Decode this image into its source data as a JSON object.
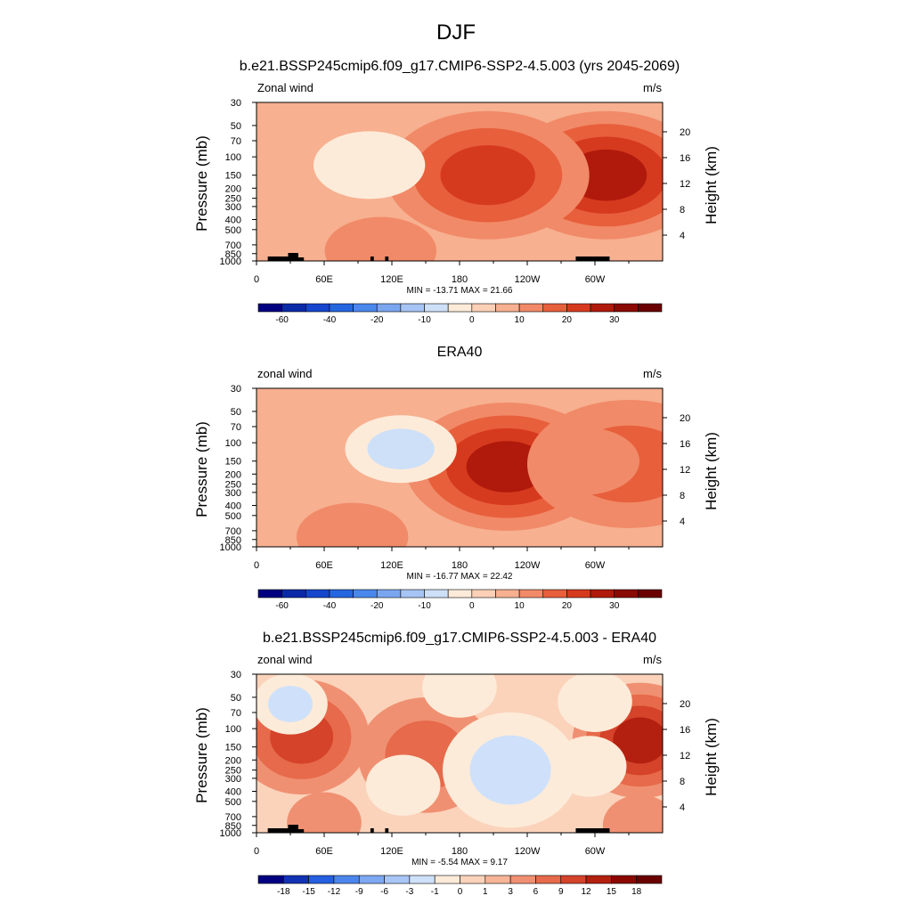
{
  "main_title": "DJF",
  "colors": {
    "ramp1": [
      "#000080",
      "#0a2aa8",
      "#1546cc",
      "#2565e0",
      "#4a88ec",
      "#7aa6f0",
      "#a6c4f4",
      "#cde0f8",
      "#fdebd9",
      "#fbd0b6",
      "#f7b090",
      "#f18a68",
      "#e85f3c",
      "#d63a1e",
      "#b01a0c",
      "#8a0a04",
      "#6a0000"
    ],
    "ramp3": [
      "#000080",
      "#1232b4",
      "#2560e0",
      "#4c86ec",
      "#7ea8f2",
      "#a9c6f6",
      "#cfe1fa",
      "#fdebd9",
      "#fbd3bb",
      "#f7b497",
      "#f09072",
      "#e66a4b",
      "#d4432a",
      "#b4200f",
      "#8a0800",
      "#6a0000"
    ]
  },
  "panels": [
    {
      "title": "b.e21.BSSP245cmip6.f09_g17.CMIP6-SSP2-4.5.003 (yrs 2045-2069)",
      "left_label": "Zonal wind",
      "right_label": "m/s",
      "minmax": "MIN = -13.71  MAX =  21.66",
      "colorbar_labels": [
        "-60",
        "-40",
        "-20",
        "-10",
        "0",
        "10",
        "20",
        "30"
      ],
      "topography": true
    },
    {
      "title": "ERA40",
      "left_label": "zonal wind",
      "right_label": "m/s",
      "minmax": "MIN = -16.77  MAX =  22.42",
      "colorbar_labels": [
        "-60",
        "-40",
        "-20",
        "-10",
        "0",
        "10",
        "20",
        "30"
      ],
      "topography": false
    },
    {
      "title": "b.e21.BSSP245cmip6.f09_g17.CMIP6-SSP2-4.5.003 - ERA40",
      "left_label": "zonal wind",
      "right_label": "m/s",
      "minmax": "MIN =  -5.54  MAX =  9.17",
      "colorbar_labels": [
        "-18",
        "-15",
        "-12",
        "-9",
        "-6",
        "-3",
        "-1",
        "0",
        "1",
        "3",
        "6",
        "9",
        "12",
        "15",
        "18"
      ],
      "topography": true
    }
  ],
  "chart_data": [
    {
      "type": "heatmap",
      "title": "b.e21.BSSP245cmip6.f09_g17.CMIP6-SSP2-4.5.003 (yrs 2045-2069)",
      "x_tick_labels": [
        "0",
        "60E",
        "120E",
        "180",
        "120W",
        "60W"
      ],
      "xlim": [
        0,
        360
      ],
      "ylabel": "Pressure (mb)",
      "y_tick_labels": [
        "30",
        "50",
        "70",
        "100",
        "150",
        "200",
        "250",
        "300",
        "400",
        "500",
        "700",
        "850",
        "1000"
      ],
      "ylim": [
        1000,
        30
      ],
      "yscale": "log",
      "ylabel_right": "Height (km)",
      "y_right_tick_labels": [
        "4",
        "8",
        "12",
        "16",
        "20"
      ],
      "contour_levels": [
        -70,
        -60,
        -50,
        -40,
        -30,
        -20,
        -15,
        -10,
        -5,
        0,
        5,
        10,
        15,
        20,
        25,
        30,
        35,
        40
      ],
      "field_centers": [
        {
          "lon": 310,
          "p": 150,
          "value": 21.66,
          "label": "max"
        },
        {
          "lon": 205,
          "p": 150,
          "value": 18.5
        },
        {
          "lon": 100,
          "p": 120,
          "value": -8
        },
        {
          "lon": 20,
          "p": 60,
          "value": -3
        },
        {
          "lon": 265,
          "p": 60,
          "value": -3
        },
        {
          "lon": 250,
          "p": 150,
          "value": 3
        },
        {
          "lon": 110,
          "p": 800,
          "value": 6
        },
        {
          "lon": 205,
          "p": 750,
          "value": -4
        }
      ],
      "min": -13.71,
      "max": 21.66
    },
    {
      "type": "heatmap",
      "title": "ERA40",
      "x_tick_labels": [
        "0",
        "60E",
        "120E",
        "180",
        "120W",
        "60W"
      ],
      "xlim": [
        0,
        360
      ],
      "ylabel": "Pressure (mb)",
      "y_tick_labels": [
        "30",
        "50",
        "70",
        "100",
        "150",
        "200",
        "250",
        "300",
        "400",
        "500",
        "700",
        "850",
        "1000"
      ],
      "ylim": [
        1000,
        30
      ],
      "yscale": "log",
      "ylabel_right": "Height (km)",
      "y_right_tick_labels": [
        "4",
        "8",
        "12",
        "16",
        "20"
      ],
      "contour_levels": [
        -70,
        -60,
        -50,
        -40,
        -30,
        -20,
        -15,
        -10,
        -5,
        0,
        5,
        10,
        15,
        20,
        25,
        30,
        35,
        40
      ],
      "field_centers": [
        {
          "lon": 222,
          "p": 170,
          "value": 22.42,
          "label": "max"
        },
        {
          "lon": 330,
          "p": 160,
          "value": 14
        },
        {
          "lon": 128,
          "p": 115,
          "value": -12
        },
        {
          "lon": 25,
          "p": 250,
          "value": -4
        },
        {
          "lon": 55,
          "p": 33,
          "value": -4
        },
        {
          "lon": 220,
          "p": 650,
          "value": -4
        },
        {
          "lon": 85,
          "p": 800,
          "value": 5
        },
        {
          "lon": 290,
          "p": 150,
          "value": 5
        }
      ],
      "min": -16.77,
      "max": 22.42
    },
    {
      "type": "heatmap",
      "title": "b.e21.BSSP245cmip6.f09_g17.CMIP6-SSP2-4.5.003 - ERA40",
      "x_tick_labels": [
        "0",
        "60E",
        "120E",
        "180",
        "120W",
        "60W"
      ],
      "xlim": [
        0,
        360
      ],
      "ylabel": "Pressure (mb)",
      "y_tick_labels": [
        "30",
        "50",
        "70",
        "100",
        "150",
        "200",
        "250",
        "300",
        "400",
        "500",
        "700",
        "850",
        "1000"
      ],
      "ylim": [
        1000,
        30
      ],
      "yscale": "log",
      "ylabel_right": "Height (km)",
      "y_right_tick_labels": [
        "4",
        "8",
        "12",
        "16",
        "20"
      ],
      "contour_levels": [
        -21,
        -18,
        -15,
        -12,
        -9,
        -6,
        -3,
        -1,
        0,
        1,
        3,
        6,
        9,
        12,
        15,
        18,
        21
      ],
      "field_centers": [
        {
          "lon": 340,
          "p": 130,
          "value": 9.17,
          "label": "max"
        },
        {
          "lon": 40,
          "p": 120,
          "value": 6
        },
        {
          "lon": 150,
          "p": 180,
          "value": 5
        },
        {
          "lon": 225,
          "p": 250,
          "value": -5.54,
          "label": "min"
        },
        {
          "lon": 30,
          "p": 58,
          "value": -3
        },
        {
          "lon": 180,
          "p": 40,
          "value": -2
        },
        {
          "lon": 300,
          "p": 55,
          "value": -2
        },
        {
          "lon": 130,
          "p": 350,
          "value": -2
        },
        {
          "lon": 295,
          "p": 230,
          "value": -2
        },
        {
          "lon": 60,
          "p": 800,
          "value": 2
        },
        {
          "lon": 340,
          "p": 850,
          "value": 1
        }
      ],
      "min": -5.54,
      "max": 9.17
    }
  ]
}
